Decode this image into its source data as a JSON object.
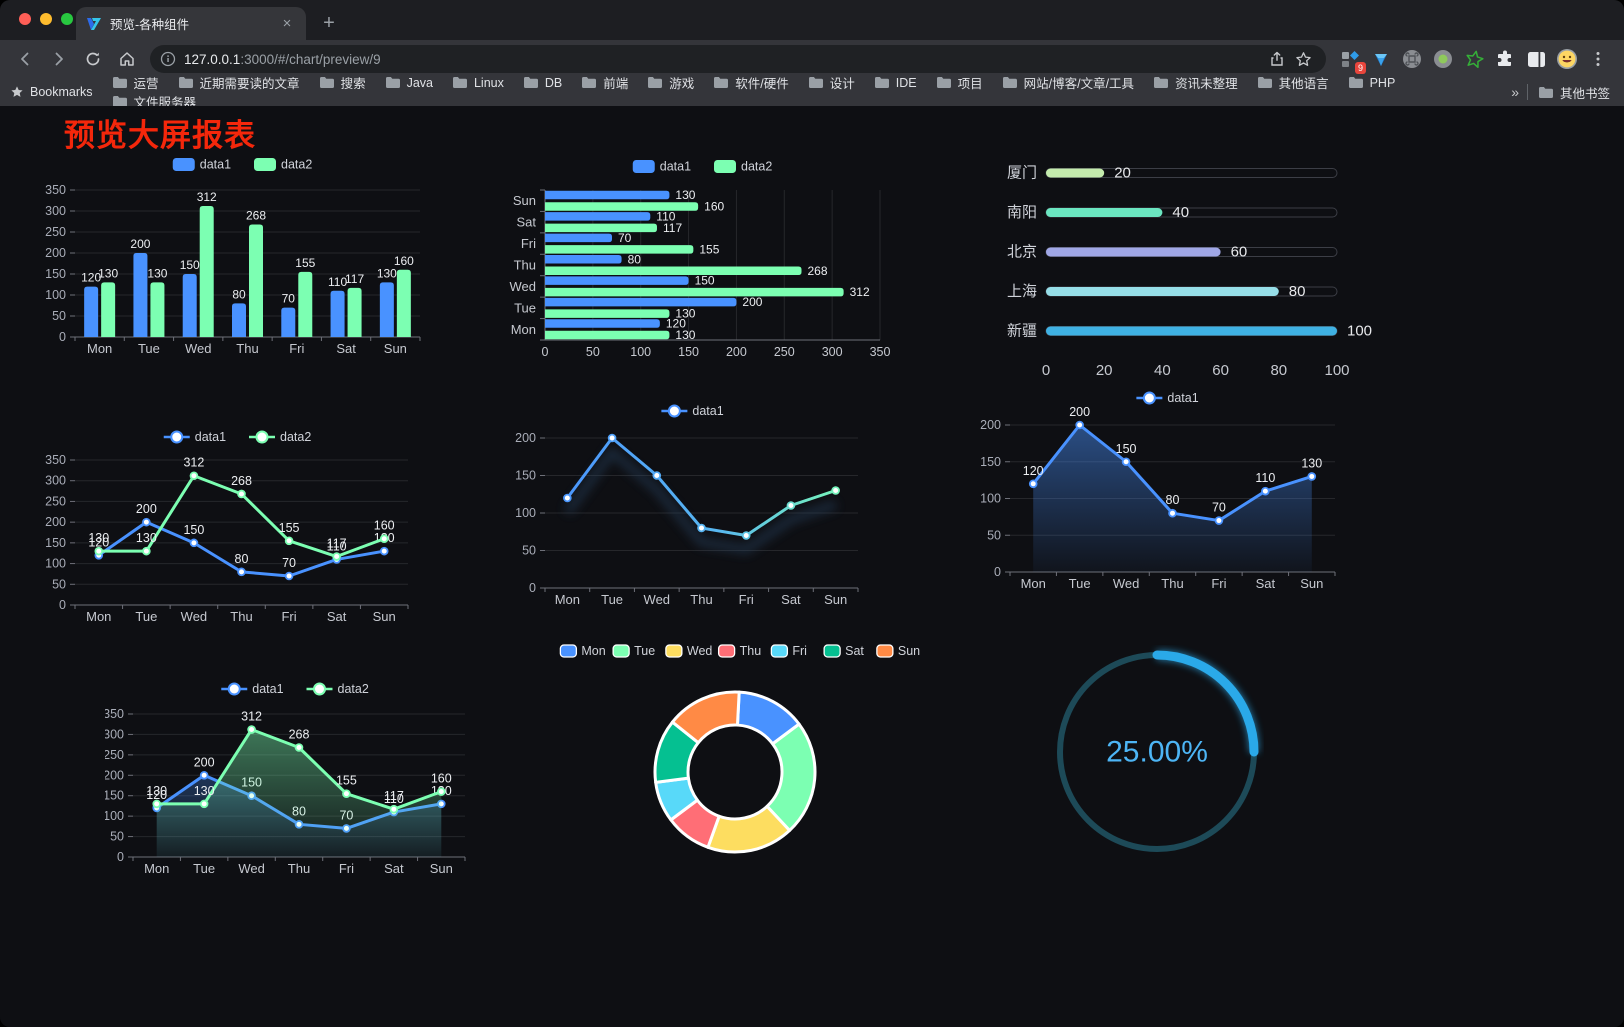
{
  "browser": {
    "tab_title": "预览-各种组件",
    "tab_close_glyph": "×",
    "new_tab_glyph": "+",
    "url_host": "127.0.0.1",
    "url_rest": ":3000/#/chart/preview/9",
    "bookmarks_root_label": "Bookmarks",
    "bookmarks": [
      "运营",
      "近期需要读的文章",
      "搜索",
      "Java",
      "Linux",
      "DB",
      "前端",
      "游戏",
      "软件/硬件",
      "设计",
      "IDE",
      "项目",
      "网站/博客/文章/工具",
      "资讯未整理",
      "其他语言",
      "PHP",
      "文件服务器"
    ],
    "bookmarks_overflow_glyph": "»",
    "other_bookmarks_label": "其他书签",
    "extension_badge_count": "9",
    "traffic_colors": {
      "close": "#ff5f57",
      "minimize": "#febc2e",
      "zoom": "#28c840"
    }
  },
  "page": {
    "title": "预览大屏报表",
    "title_color": "#f4270b",
    "background": "#0e0f13"
  },
  "chart_data": [
    {
      "id": "bar-grouped",
      "type": "bar",
      "categories": [
        "Mon",
        "Tue",
        "Wed",
        "Thu",
        "Fri",
        "Sat",
        "Sun"
      ],
      "series": [
        {
          "name": "data1",
          "color": "#4992ff",
          "values": [
            120,
            200,
            150,
            80,
            70,
            110,
            130
          ]
        },
        {
          "name": "data2",
          "color": "#7cffb2",
          "values": [
            130,
            130,
            312,
            268,
            155,
            117,
            160
          ]
        }
      ],
      "ylim": [
        0,
        350
      ],
      "yticks": [
        0,
        50,
        100,
        150,
        200,
        250,
        300,
        350
      ],
      "legend_position": "top",
      "grid": true,
      "value_labels": true
    },
    {
      "id": "bar-horizontal",
      "type": "bar-horizontal",
      "categories": [
        "Mon",
        "Tue",
        "Wed",
        "Thu",
        "Fri",
        "Sat",
        "Sun"
      ],
      "series": [
        {
          "name": "data1",
          "color": "#4992ff",
          "values": [
            120,
            200,
            150,
            80,
            70,
            110,
            130
          ]
        },
        {
          "name": "data2",
          "color": "#7cffb2",
          "values": [
            130,
            130,
            312,
            268,
            155,
            117,
            160
          ]
        }
      ],
      "xlim": [
        0,
        350
      ],
      "xticks": [
        0,
        50,
        100,
        150,
        200,
        250,
        300,
        350
      ],
      "legend_position": "top",
      "grid": true,
      "value_labels": true
    },
    {
      "id": "progress-bars",
      "type": "bar-progress",
      "categories": [
        "厦门",
        "南阳",
        "北京",
        "上海",
        "新疆"
      ],
      "values": [
        20,
        40,
        60,
        80,
        100
      ],
      "colors": [
        "#c4ebad",
        "#6be6c1",
        "#a0a7e6",
        "#96dee8",
        "#3fb1e3"
      ],
      "xlim": [
        0,
        100
      ],
      "xticks": [
        0,
        20,
        40,
        60,
        80,
        100
      ],
      "value_labels": true
    },
    {
      "id": "line-two",
      "type": "line",
      "categories": [
        "Mon",
        "Tue",
        "Wed",
        "Thu",
        "Fri",
        "Sat",
        "Sun"
      ],
      "series": [
        {
          "name": "data1",
          "color": "#4992ff",
          "values": [
            120,
            200,
            150,
            80,
            70,
            110,
            130
          ]
        },
        {
          "name": "data2",
          "color": "#7cffb2",
          "values": [
            130,
            130,
            312,
            268,
            155,
            117,
            160
          ]
        }
      ],
      "ylim": [
        0,
        350
      ],
      "yticks": [
        0,
        50,
        100,
        150,
        200,
        250,
        300,
        350
      ],
      "legend_position": "top",
      "grid": true,
      "value_labels": true
    },
    {
      "id": "line-gradient",
      "type": "line",
      "categories": [
        "Mon",
        "Tue",
        "Wed",
        "Thu",
        "Fri",
        "Sat",
        "Sun"
      ],
      "series": [
        {
          "name": "data1",
          "color": "#4992ff",
          "gradient": [
            "#4992ff",
            "#58b7f0",
            "#7cffb2"
          ],
          "values": [
            120,
            200,
            150,
            80,
            70,
            110,
            130
          ]
        }
      ],
      "ylim": [
        0,
        200
      ],
      "yticks": [
        0,
        50,
        100,
        150,
        200
      ],
      "legend_position": "top",
      "grid": true,
      "value_labels": false,
      "glow": true
    },
    {
      "id": "area-single",
      "type": "area",
      "categories": [
        "Mon",
        "Tue",
        "Wed",
        "Thu",
        "Fri",
        "Sat",
        "Sun"
      ],
      "series": [
        {
          "name": "data1",
          "color": "#4992ff",
          "values": [
            120,
            200,
            150,
            80,
            70,
            110,
            130
          ]
        }
      ],
      "ylim": [
        0,
        200
      ],
      "yticks": [
        0,
        50,
        100,
        150,
        200
      ],
      "legend_position": "top",
      "grid": true,
      "value_labels": true
    },
    {
      "id": "area-two",
      "type": "area",
      "categories": [
        "Mon",
        "Tue",
        "Wed",
        "Thu",
        "Fri",
        "Sat",
        "Sun"
      ],
      "series": [
        {
          "name": "data1",
          "color": "#4992ff",
          "values": [
            120,
            200,
            150,
            80,
            70,
            110,
            130
          ]
        },
        {
          "name": "data2",
          "color": "#7cffb2",
          "values": [
            130,
            130,
            312,
            268,
            155,
            117,
            160
          ]
        }
      ],
      "ylim": [
        0,
        350
      ],
      "yticks": [
        0,
        50,
        100,
        150,
        200,
        250,
        300,
        350
      ],
      "legend_position": "top",
      "grid": true,
      "value_labels": true
    },
    {
      "id": "donut",
      "type": "pie",
      "categories": [
        "Mon",
        "Tue",
        "Wed",
        "Thu",
        "Fri",
        "Sat",
        "Sun"
      ],
      "values": [
        120,
        200,
        150,
        80,
        70,
        110,
        130
      ],
      "colors": [
        "#4992ff",
        "#7cffb2",
        "#fddd60",
        "#ff6e76",
        "#58d9f9",
        "#05c091",
        "#ff8a45"
      ],
      "legend_position": "top",
      "border_color": "#ffffff"
    },
    {
      "id": "gauge",
      "type": "gauge",
      "value": 25,
      "label": "25.00%",
      "color": "#2aa9e9",
      "track_color": "#1d4a58",
      "text_color": "#4db5f5"
    }
  ]
}
